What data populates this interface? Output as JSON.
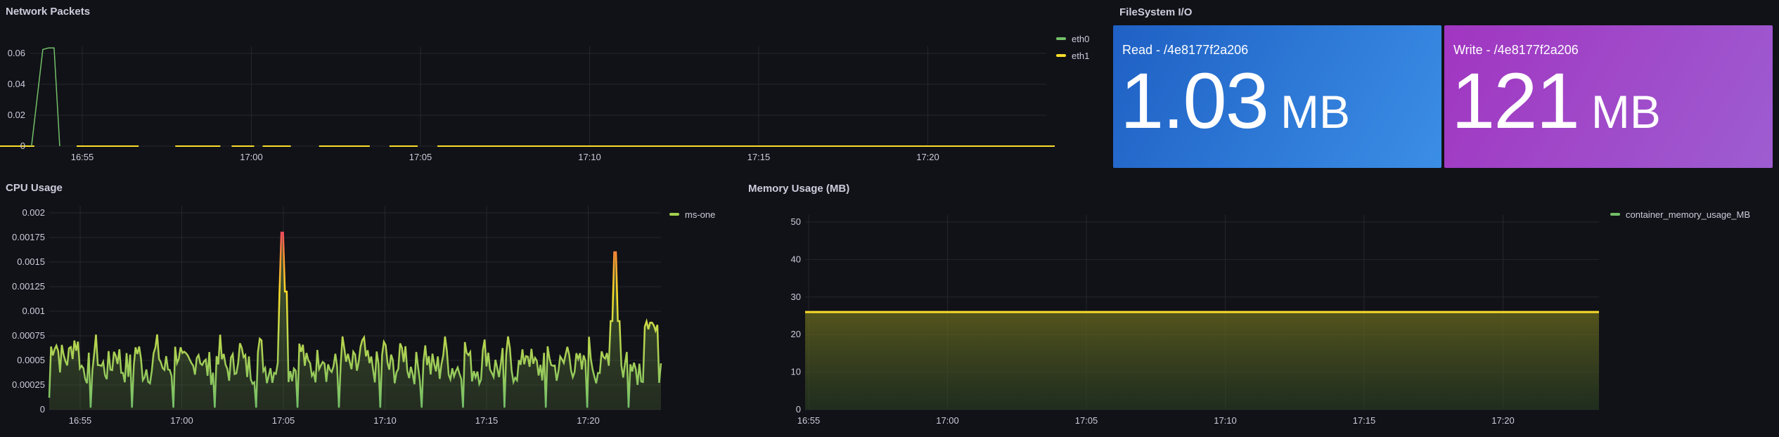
{
  "network": {
    "title": "Network Packets",
    "legend": [
      {
        "name": "eth0",
        "color": "#73bf69"
      },
      {
        "name": "eth1",
        "color": "#fade2a"
      }
    ],
    "y_ticks": [
      "0.06",
      "0.04",
      "0.02",
      "0"
    ],
    "x_ticks": [
      "16:55",
      "17:00",
      "17:05",
      "17:10",
      "17:15",
      "17:20"
    ]
  },
  "filesystem": {
    "title": "FileSystem I/O",
    "read": {
      "label": "Read - /4e8177f2a206",
      "value": "1.03",
      "unit": "MB",
      "color_from": "#1f60c4",
      "color_to": "#3b8ee6"
    },
    "write": {
      "label": "Write - /4e8177f2a206",
      "value": "121",
      "unit": "MB",
      "color_from": "#a135c1",
      "color_to": "#9e5dd1"
    }
  },
  "cpu": {
    "title": "CPU Usage",
    "legend": [
      {
        "name": "ms-one",
        "color": "#a4d04e"
      }
    ],
    "y_ticks": [
      "0.002",
      "0.00175",
      "0.0015",
      "0.00125",
      "0.001",
      "0.00075",
      "0.0005",
      "0.00025",
      "0"
    ],
    "x_ticks": [
      "16:55",
      "17:00",
      "17:05",
      "17:10",
      "17:15",
      "17:20"
    ]
  },
  "memory": {
    "title": "Memory Usage (MB)",
    "legend": [
      {
        "name": "container_memory_usage_MB",
        "color": "#73bf69"
      }
    ],
    "y_ticks": [
      "50",
      "40",
      "30",
      "20",
      "10",
      "0"
    ],
    "x_ticks": [
      "16:55",
      "17:00",
      "17:05",
      "17:10",
      "17:15",
      "17:20"
    ]
  },
  "chart_data": [
    {
      "type": "line",
      "title": "Network Packets",
      "ylim": [
        0,
        0.07
      ],
      "series": [
        {
          "name": "eth0",
          "x": [
            "16:53:30",
            "16:53:50",
            "16:54:00",
            "16:54:10",
            "16:54:20"
          ],
          "values": [
            0,
            0.063,
            0.064,
            0.064,
            0
          ]
        },
        {
          "name": "eth1",
          "x": [
            "16:52:30",
            "16:54:50",
            "16:56:30",
            "17:01:20",
            "17:06:00",
            "17:23:50"
          ],
          "values": [
            0,
            0,
            0,
            0,
            0,
            0
          ]
        }
      ]
    },
    {
      "type": "line",
      "title": "CPU Usage",
      "ylim": [
        0,
        0.002
      ],
      "series": [
        {
          "name": "ms-one",
          "x": [
            "16:53",
            "16:55",
            "16:57",
            "17:00",
            "17:03",
            "17:05",
            "17:08",
            "17:12",
            "17:16",
            "17:20",
            "17:21",
            "17:23"
          ],
          "values": [
            0.0005,
            0.00065,
            0.00045,
            0.0005,
            0.00045,
            0.0018,
            0.0004,
            0.0003,
            0.0005,
            0.0006,
            0.0016,
            0.0004
          ]
        }
      ]
    },
    {
      "type": "area",
      "title": "Memory Usage (MB)",
      "ylim": [
        0,
        52
      ],
      "series": [
        {
          "name": "container_memory_usage_MB",
          "x": [
            "16:53",
            "17:23"
          ],
          "values": [
            26,
            26
          ]
        }
      ]
    }
  ]
}
